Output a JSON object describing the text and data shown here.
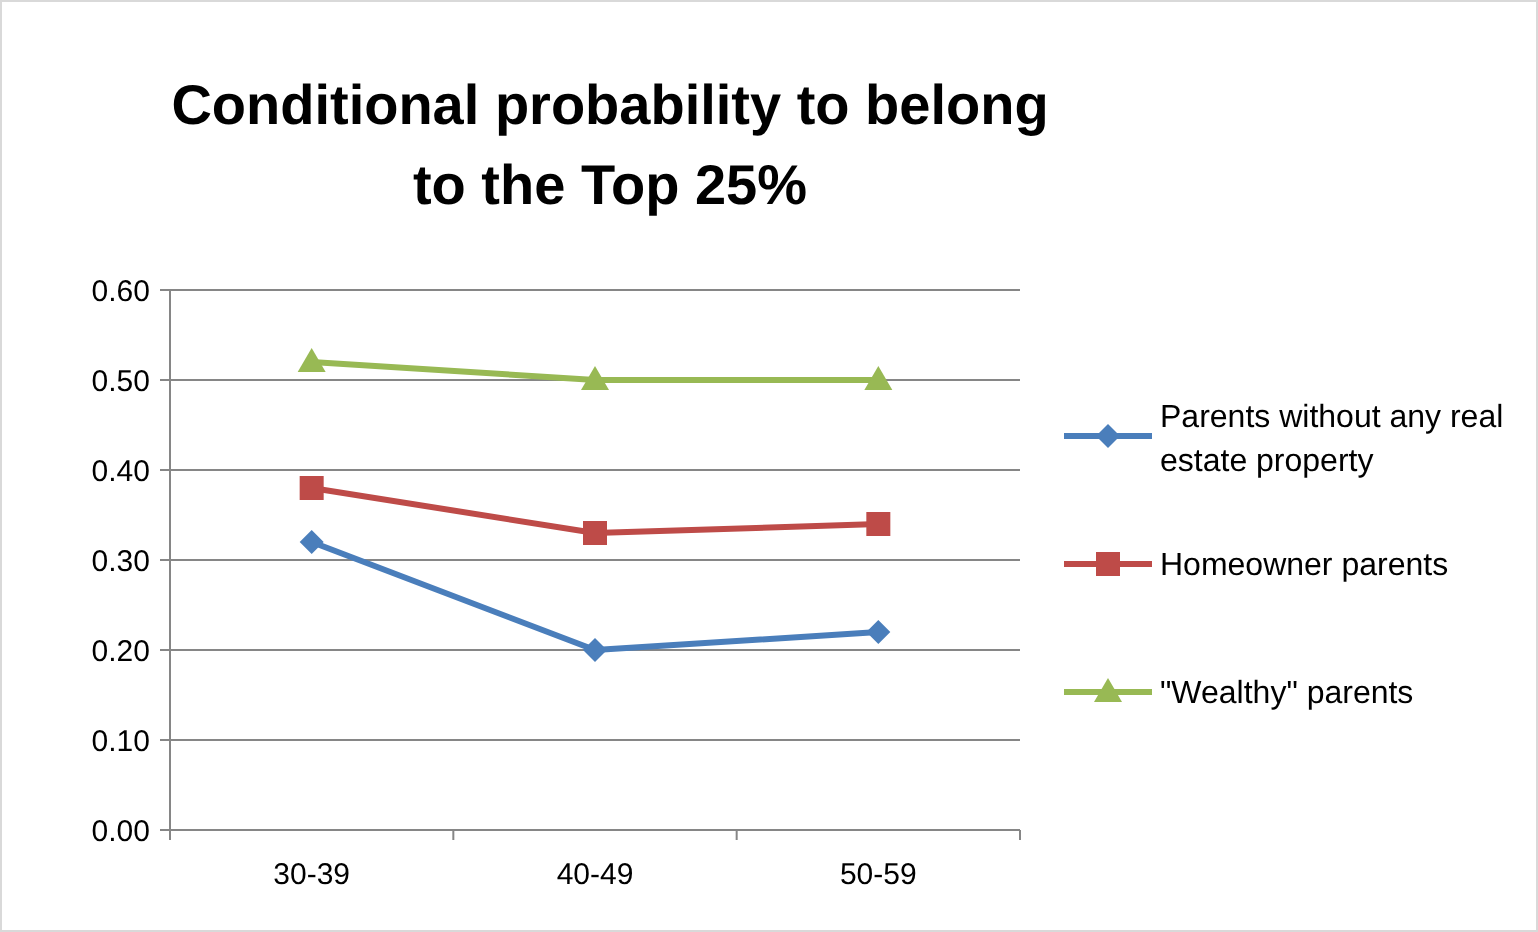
{
  "chart_data": {
    "type": "line",
    "title": "Conditional probability to belong to the Top 25%",
    "categories": [
      "30-39",
      "40-49",
      "50-59"
    ],
    "ylim": [
      0,
      0.6
    ],
    "yticks": [
      {
        "value": 0,
        "label": "0.00"
      },
      {
        "value": 0.1,
        "label": "0.10"
      },
      {
        "value": 0.2,
        "label": "0.20"
      },
      {
        "value": 0.3,
        "label": "0.30"
      },
      {
        "value": 0.4,
        "label": "0.40"
      },
      {
        "value": 0.5,
        "label": "0.50"
      },
      {
        "value": 0.6,
        "label": "0.60"
      }
    ],
    "grid": "y",
    "legend": "right",
    "series": [
      {
        "name": "Parents without any real estate property",
        "color": "#4a7ebb",
        "marker": "diamond",
        "values": [
          0.32,
          0.2,
          0.22
        ]
      },
      {
        "name": "Homeowner parents",
        "color": "#be4b48",
        "marker": "square",
        "values": [
          0.38,
          0.33,
          0.34
        ]
      },
      {
        "name": "\"Wealthy\" parents",
        "color": "#98b954",
        "marker": "triangle",
        "values": [
          0.52,
          0.5,
          0.5
        ]
      }
    ]
  }
}
